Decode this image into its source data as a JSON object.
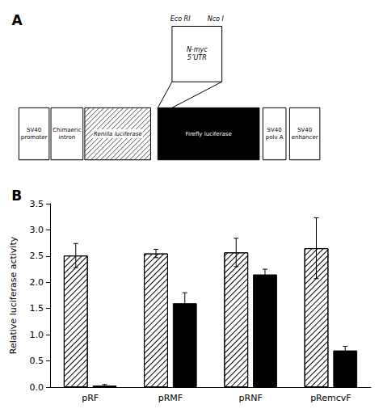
{
  "chart_data": {
    "type": "bar",
    "categories": [
      "pRF",
      "pRMF",
      "pRNF",
      "pRemcvF"
    ],
    "series": [
      {
        "color": "white",
        "values": [
          2.51,
          2.55,
          2.57,
          2.65
        ],
        "errors": [
          0.23,
          0.08,
          0.27,
          0.58
        ]
      },
      {
        "color": "black",
        "values": [
          0.03,
          1.6,
          2.15,
          0.7
        ],
        "errors": [
          0.02,
          0.2,
          0.1,
          0.08
        ]
      }
    ],
    "ylabel": "Relative luciferase activity",
    "ylim": [
      0,
      3.5
    ],
    "yticks": [
      {
        "value": 0,
        "label": "0.0"
      },
      {
        "value": 0.5,
        "label": "0.5"
      },
      {
        "value": 1,
        "label": "1.0"
      },
      {
        "value": 1.5,
        "label": "1.5"
      },
      {
        "value": 2,
        "label": "2.0"
      },
      {
        "value": 2.5,
        "label": "2.5"
      },
      {
        "value": 3,
        "label": "3.0"
      },
      {
        "value": 3.5,
        "label": "3.5"
      }
    ],
    "grid": false,
    "annotations": [
      "A",
      "SV40\npromoter",
      "Chimaeric\nintron",
      "Renilla luciferase",
      "Firefly luciferase",
      "SV40\npolv A",
      "SV40\nenhancer",
      "N-myc\n5’UTR",
      "Eco RI",
      "Nco I",
      "B"
    ]
  }
}
